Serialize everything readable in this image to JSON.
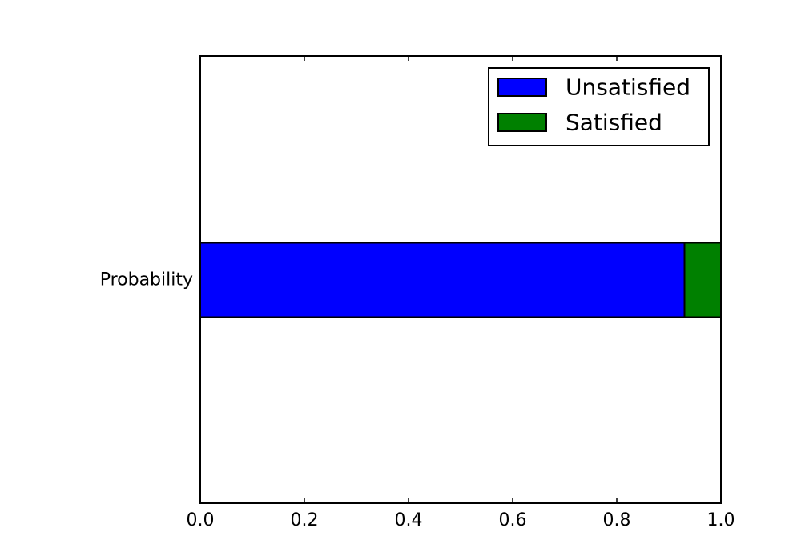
{
  "chart_data": {
    "type": "bar",
    "orientation": "horizontal",
    "stacked": true,
    "categories": [
      "Probability"
    ],
    "series": [
      {
        "name": "Unsatisfied",
        "values": [
          0.93
        ],
        "color": "#0000ff"
      },
      {
        "name": "Satisfied",
        "values": [
          0.07
        ],
        "color": "#008000"
      }
    ],
    "xlim": [
      0.0,
      1.0
    ],
    "xticks": [
      "0.0",
      "0.2",
      "0.4",
      "0.6",
      "0.8",
      "1.0"
    ],
    "grid": false,
    "legend": {
      "position": "top-right",
      "entries": [
        "Unsatisfied",
        "Satisfied"
      ]
    },
    "title": "",
    "xlabel": "",
    "ylabel": ""
  }
}
